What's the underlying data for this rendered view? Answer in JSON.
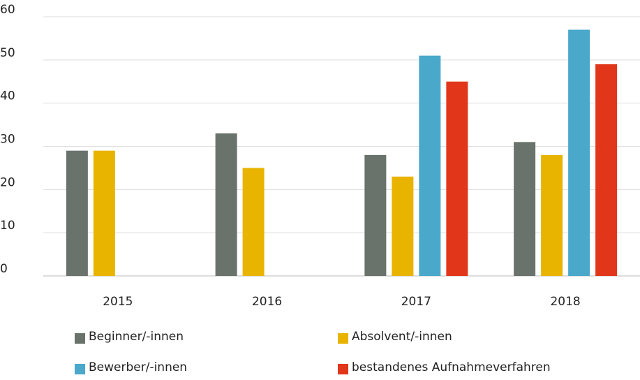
{
  "chart_data": {
    "type": "bar",
    "categories": [
      "2015",
      "2016",
      "2017",
      "2018"
    ],
    "series": [
      {
        "name": "Beginner/-innen",
        "color": "#69726b",
        "values": [
          29,
          33,
          28,
          31
        ]
      },
      {
        "name": "Absolvent/-innen",
        "color": "#e8b400",
        "values": [
          29,
          25,
          23,
          28
        ]
      },
      {
        "name": "Bewerber/-innen",
        "color": "#4aa8cb",
        "values": [
          null,
          null,
          51,
          57
        ]
      },
      {
        "name": "bestandenes Aufnahmeverfahren",
        "color": "#e2361b",
        "values": [
          null,
          null,
          45,
          49
        ]
      }
    ],
    "ylim": [
      0,
      60
    ],
    "yticks": [
      0,
      10,
      20,
      30,
      40,
      50,
      60
    ],
    "grid": true
  }
}
